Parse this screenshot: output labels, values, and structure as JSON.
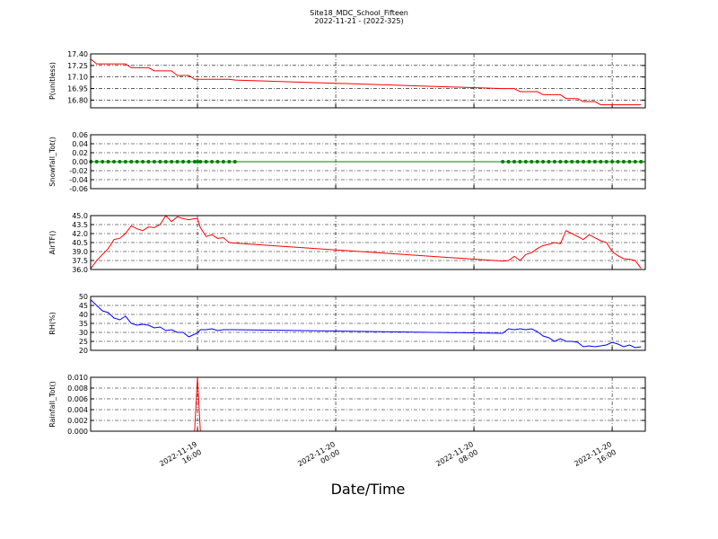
{
  "chart_data": {
    "type": "line",
    "title": "Site18_MDC_School_Fifteen",
    "subtitle": "2022-11-21 - (2022-325)",
    "xlabel": "Date/Time",
    "grid": true,
    "xlim": [
      "2022-11-19 09:49",
      "2022-11-20 17:55"
    ],
    "xticks": [
      "2022-11-19 16:00",
      "2022-11-20 00:00",
      "2022-11-20 08:00",
      "2022-11-20 16:00"
    ],
    "x": [
      "2022-11-19 09:50",
      "2022-11-19 10:10",
      "2022-11-19 10:30",
      "2022-11-19 10:50",
      "2022-11-19 11:10",
      "2022-11-19 11:30",
      "2022-11-19 11:50",
      "2022-11-19 12:10",
      "2022-11-19 12:30",
      "2022-11-19 12:50",
      "2022-11-19 13:10",
      "2022-11-19 13:30",
      "2022-11-19 13:50",
      "2022-11-19 14:10",
      "2022-11-19 14:30",
      "2022-11-19 14:50",
      "2022-11-19 15:10",
      "2022-11-19 15:30",
      "2022-11-19 15:50",
      "2022-11-19 16:00",
      "2022-11-19 16:10",
      "2022-11-19 16:30",
      "2022-11-19 16:50",
      "2022-11-19 17:10",
      "2022-11-19 17:30",
      "2022-11-19 17:50",
      "2022-11-19 18:10",
      "2022-11-20 09:40",
      "2022-11-20 10:00",
      "2022-11-20 10:20",
      "2022-11-20 10:40",
      "2022-11-20 11:00",
      "2022-11-20 11:20",
      "2022-11-20 11:40",
      "2022-11-20 12:00",
      "2022-11-20 12:20",
      "2022-11-20 12:40",
      "2022-11-20 13:00",
      "2022-11-20 13:20",
      "2022-11-20 13:40",
      "2022-11-20 14:00",
      "2022-11-20 14:20",
      "2022-11-20 14:40",
      "2022-11-20 15:00",
      "2022-11-20 15:20",
      "2022-11-20 15:40",
      "2022-11-20 16:00",
      "2022-11-20 16:20",
      "2022-11-20 16:40",
      "2022-11-20 17:00",
      "2022-11-20 17:20",
      "2022-11-20 17:40"
    ],
    "panels": [
      {
        "ylabel": "P(unitless)",
        "color": "#ff0000",
        "ylim": [
          16.7,
          17.4
        ],
        "yticks": [
          {
            "value": 16.8,
            "label": "16.80"
          },
          16.95,
          {
            "value": 17.1,
            "label": "17.10"
          },
          17.25,
          {
            "value": 17.4,
            "label": "17.40"
          }
        ],
        "values": [
          17.33,
          17.27,
          17.27,
          17.27,
          17.27,
          17.27,
          17.27,
          17.22,
          17.22,
          17.22,
          17.22,
          17.18,
          17.18,
          17.18,
          17.18,
          17.12,
          17.12,
          17.12,
          17.07,
          17.07,
          17.07,
          17.07,
          17.07,
          17.07,
          17.07,
          17.07,
          17.06,
          16.95,
          16.95,
          16.95,
          16.91,
          16.91,
          16.91,
          16.91,
          16.87,
          16.87,
          16.87,
          16.87,
          16.82,
          16.82,
          16.82,
          16.78,
          16.78,
          16.78,
          16.74,
          16.74,
          16.74,
          16.74,
          16.74,
          16.74,
          16.74,
          16.74
        ]
      },
      {
        "ylabel": "Snowfall_Tot()",
        "color": "#008000",
        "marker": "o",
        "ylim": [
          -0.06,
          0.06
        ],
        "yticks": [
          -0.06,
          -0.04,
          -0.02,
          {
            "value": 0,
            "label": "0.00"
          },
          0.02,
          0.04,
          0.06
        ],
        "values": [
          0,
          0,
          0,
          0,
          0,
          0,
          0,
          0,
          0,
          0,
          0,
          0,
          0,
          0,
          0,
          0,
          0,
          0,
          0,
          0,
          0,
          0,
          0,
          0,
          0,
          0,
          0,
          0,
          0,
          0,
          0,
          0,
          0,
          0,
          0,
          0,
          0,
          0,
          0,
          0,
          0,
          0,
          0,
          0,
          0,
          0,
          0,
          0,
          0,
          0,
          0,
          0
        ]
      },
      {
        "ylabel": "AirTF()",
        "color": "#ff0000",
        "ylim": [
          36,
          45
        ],
        "yticks": [
          {
            "value": 36,
            "label": "36.0"
          },
          37.5,
          {
            "value": 39,
            "label": "39.0"
          },
          40.5,
          {
            "value": 42,
            "label": "42.0"
          },
          43.5,
          {
            "value": 45,
            "label": "45.0"
          }
        ],
        "values": [
          36.2,
          37.5,
          38.5,
          39.5,
          41,
          41.2,
          42,
          43.3,
          42.8,
          42.5,
          43.1,
          43,
          43.5,
          45,
          44,
          44.8,
          44.5,
          44.3,
          44.5,
          44.5,
          43,
          41.5,
          41.8,
          41.2,
          41.3,
          40.5,
          40.4,
          37.4,
          37.5,
          38.2,
          37.5,
          38.5,
          38.8,
          39.5,
          40,
          40.2,
          40.5,
          40.3,
          42.5,
          42,
          41.5,
          41,
          41.8,
          41.3,
          40.8,
          40.5,
          39,
          38.3,
          37.8,
          37.7,
          37.5,
          36.2
        ]
      },
      {
        "ylabel": "RH(%)",
        "color": "#0000ff",
        "ylim": [
          20,
          50
        ],
        "yticks": [
          20,
          25,
          30,
          35,
          40,
          45,
          50
        ],
        "values": [
          48,
          45,
          42,
          41,
          38,
          37,
          39,
          35,
          34,
          34.5,
          34,
          32.5,
          33,
          31,
          31.5,
          30,
          30,
          27.5,
          29,
          29.5,
          31.5,
          31.5,
          32,
          31,
          31.5,
          31.5,
          31.5,
          29.5,
          32,
          31.5,
          32,
          31.5,
          32,
          30.5,
          28,
          27,
          25,
          26.5,
          25,
          25,
          24.5,
          22,
          22.5,
          22,
          22.5,
          23,
          24.5,
          23.5,
          22,
          23,
          21.5,
          22
        ]
      },
      {
        "ylabel": "Rainfall_Tot()",
        "color": "#ff0000",
        "ylim": [
          0,
          0.01
        ],
        "yticks": [
          {
            "value": 0,
            "label": "0.000"
          },
          {
            "value": 0.002,
            "label": "0.002"
          },
          {
            "value": 0.004,
            "label": "0.004"
          },
          {
            "value": 0.006,
            "label": "0.006"
          },
          {
            "value": 0.008,
            "label": "0.008"
          },
          {
            "value": 0.01,
            "label": "0.010"
          }
        ],
        "values": [
          0,
          0,
          0,
          0,
          0,
          0,
          0,
          0,
          0,
          0,
          0,
          0,
          0,
          0,
          0,
          0,
          0,
          0,
          0,
          0.01,
          0,
          0,
          0,
          0,
          0,
          0,
          0,
          0,
          0,
          0,
          0,
          0,
          0,
          0,
          0,
          0,
          0,
          0,
          0,
          0,
          0,
          0,
          0,
          0,
          0,
          0,
          0,
          0,
          0,
          0,
          0,
          0
        ]
      }
    ]
  }
}
